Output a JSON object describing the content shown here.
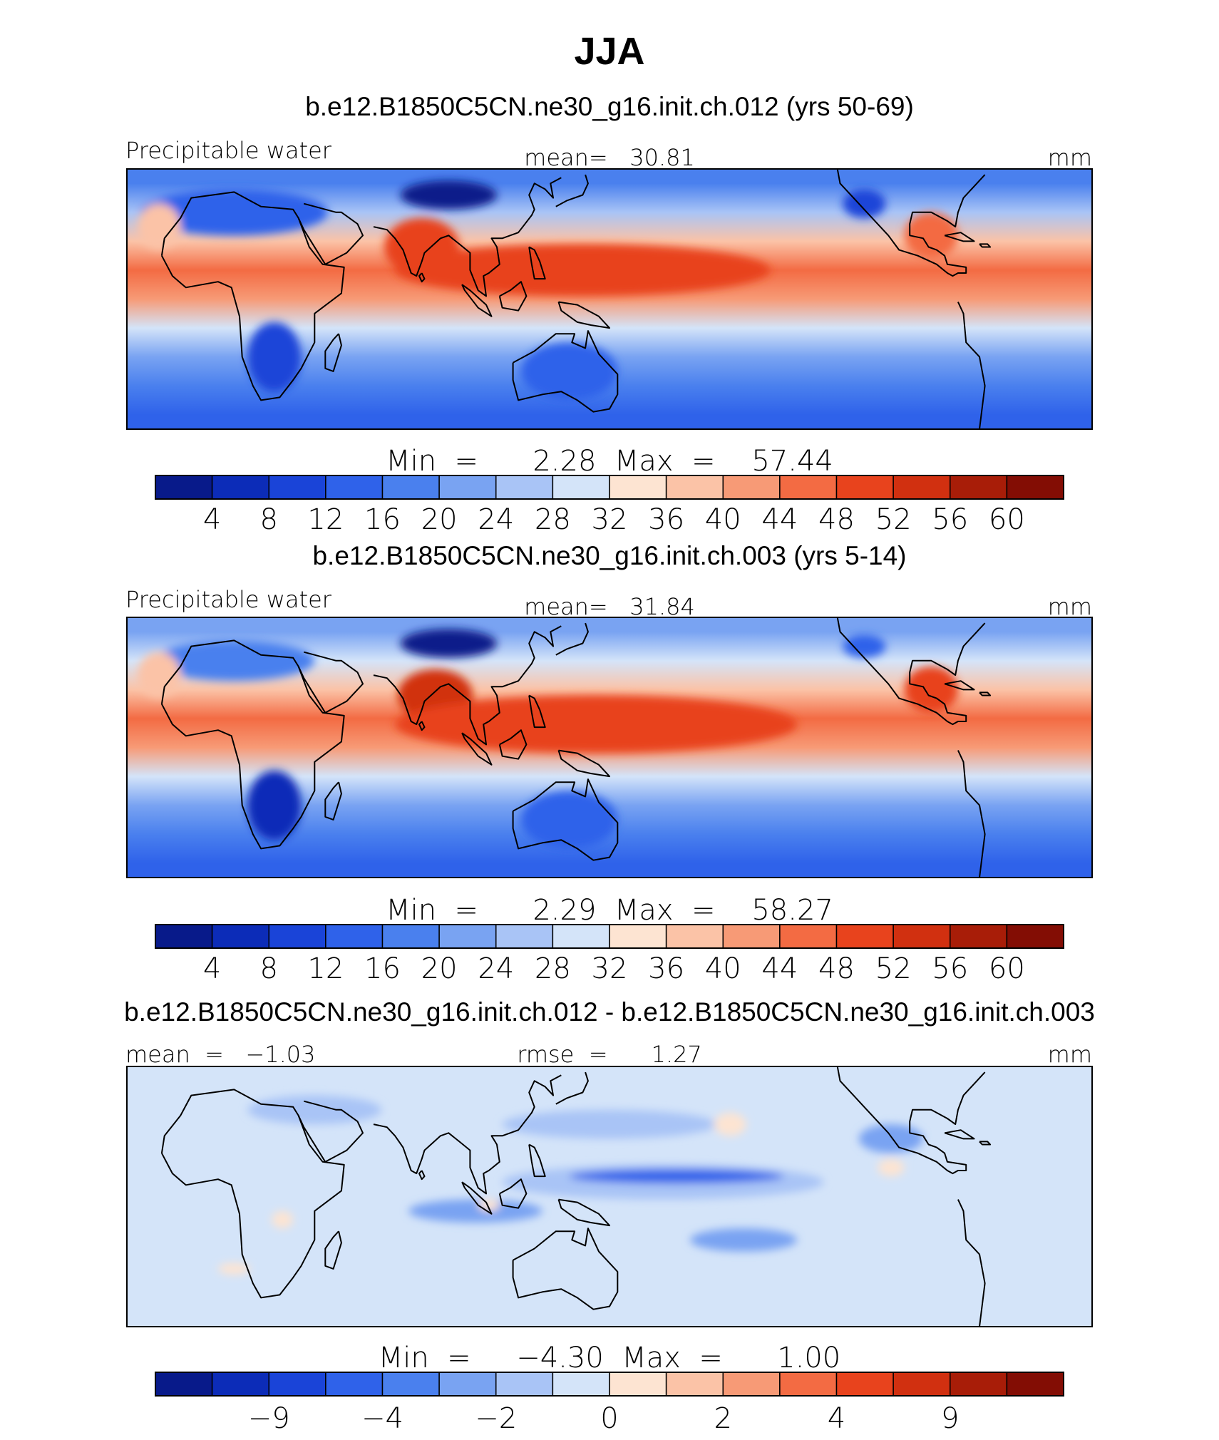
{
  "figure": {
    "title": "JJA"
  },
  "chart_data": [
    {
      "type": "heatmap",
      "subtitle": "b.e12.B1850C5CN.ne30_g16.init.ch.012 (yrs 50-69)",
      "variable_label": "Precipitable water",
      "stat_text": "mean=   30.81",
      "units": "mm",
      "minmax_text": "Min  =      2.28  Max  =    57.44",
      "colorbar": {
        "levels": [
          "4",
          "8",
          "12",
          "16",
          "20",
          "24",
          "28",
          "32",
          "36",
          "40",
          "44",
          "48",
          "52",
          "56",
          "60"
        ],
        "colors": [
          "#081a8a",
          "#0c2cb8",
          "#1a44d8",
          "#2f62ea",
          "#4a80ee",
          "#79a3f2",
          "#a9c4f6",
          "#d4e4f9",
          "#fde4d2",
          "#fbc3a7",
          "#f79a76",
          "#f36b43",
          "#e8431d",
          "#d13010",
          "#a81d08",
          "#830d04"
        ]
      },
      "bands": [
        {
          "lat": 40,
          "color": "#4a80ee"
        },
        {
          "lat": 30,
          "color": "#a9c4f6"
        },
        {
          "lat": 20,
          "color": "#fbc3a7"
        },
        {
          "lat": 10,
          "color": "#f36b43"
        },
        {
          "lat": 0,
          "color": "#f79a76"
        },
        {
          "lat": -10,
          "color": "#d4e4f9"
        },
        {
          "lat": -20,
          "color": "#79a3f2"
        },
        {
          "lat": -30,
          "color": "#4a80ee"
        },
        {
          "lat": -40,
          "color": "#2f62ea"
        }
      ],
      "blobs": [
        {
          "lon": 10,
          "lat": 30,
          "rx": 35,
          "ry": 8,
          "color": "#2f62ea"
        },
        {
          "lon": 90,
          "lat": 36,
          "rx": 18,
          "ry": 5,
          "color": "#081a8a"
        },
        {
          "lon": 80,
          "lat": 18,
          "rx": 14,
          "ry": 10,
          "color": "#e8431d"
        },
        {
          "lon": 140,
          "lat": 10,
          "rx": 70,
          "ry": 9,
          "color": "#e8431d"
        },
        {
          "lon": 25,
          "lat": -20,
          "rx": 10,
          "ry": 12,
          "color": "#1a44d8"
        },
        {
          "lon": 135,
          "lat": -25,
          "rx": 18,
          "ry": 10,
          "color": "#2f62ea"
        },
        {
          "lon": 245,
          "lat": 33,
          "rx": 8,
          "ry": 5,
          "color": "#1a44d8"
        },
        {
          "lon": 270,
          "lat": 22,
          "rx": 10,
          "ry": 8,
          "color": "#f36b43"
        },
        {
          "lon": -18,
          "lat": 25,
          "rx": 8,
          "ry": 8,
          "color": "#fbc3a7"
        }
      ]
    },
    {
      "type": "heatmap",
      "subtitle": "b.e12.B1850C5CN.ne30_g16.init.ch.003 (yrs 5-14)",
      "variable_label": "Precipitable water",
      "stat_text": "mean=   31.84",
      "units": "mm",
      "minmax_text": "Min  =      2.29  Max  =    58.27",
      "colorbar": {
        "levels": [
          "4",
          "8",
          "12",
          "16",
          "20",
          "24",
          "28",
          "32",
          "36",
          "40",
          "44",
          "48",
          "52",
          "56",
          "60"
        ],
        "colors": [
          "#081a8a",
          "#0c2cb8",
          "#1a44d8",
          "#2f62ea",
          "#4a80ee",
          "#79a3f2",
          "#a9c4f6",
          "#d4e4f9",
          "#fde4d2",
          "#fbc3a7",
          "#f79a76",
          "#f36b43",
          "#e8431d",
          "#d13010",
          "#a81d08",
          "#830d04"
        ]
      },
      "bands": [
        {
          "lat": 40,
          "color": "#79a3f2"
        },
        {
          "lat": 30,
          "color": "#d4e4f9"
        },
        {
          "lat": 20,
          "color": "#fbc3a7"
        },
        {
          "lat": 10,
          "color": "#f36b43"
        },
        {
          "lat": 0,
          "color": "#f79a76"
        },
        {
          "lat": -10,
          "color": "#d4e4f9"
        },
        {
          "lat": -20,
          "color": "#79a3f2"
        },
        {
          "lat": -30,
          "color": "#4a80ee"
        },
        {
          "lat": -40,
          "color": "#2f62ea"
        }
      ],
      "blobs": [
        {
          "lon": 10,
          "lat": 30,
          "rx": 30,
          "ry": 7,
          "color": "#4a80ee"
        },
        {
          "lon": 90,
          "lat": 36,
          "rx": 18,
          "ry": 5,
          "color": "#081a8a"
        },
        {
          "lon": 85,
          "lat": 18,
          "rx": 14,
          "ry": 9,
          "color": "#d13010"
        },
        {
          "lon": 145,
          "lat": 8,
          "rx": 75,
          "ry": 10,
          "color": "#e8431d"
        },
        {
          "lon": 25,
          "lat": -20,
          "rx": 10,
          "ry": 12,
          "color": "#0c2cb8"
        },
        {
          "lon": 135,
          "lat": -25,
          "rx": 18,
          "ry": 10,
          "color": "#2f62ea"
        },
        {
          "lon": 245,
          "lat": 35,
          "rx": 8,
          "ry": 4,
          "color": "#2f62ea"
        },
        {
          "lon": 270,
          "lat": 20,
          "rx": 10,
          "ry": 8,
          "color": "#e8431d"
        },
        {
          "lon": -18,
          "lat": 25,
          "rx": 8,
          "ry": 8,
          "color": "#fbc3a7"
        }
      ]
    },
    {
      "type": "heatmap",
      "subtitle": "b.e12.B1850C5CN.ne30_g16.init.ch.012 - b.e12.B1850C5CN.ne30_g16.init.ch.003",
      "variable_label": "mean  =   −1.03",
      "stat_text": "rmse  =      1.27",
      "units": "mm",
      "minmax_text": "Min  =     −4.30  Max  =      1.00",
      "colorbar": {
        "levels": [
          "−9",
          "",
          "−4",
          "",
          "−2",
          "",
          "0",
          "",
          "2",
          "",
          "4",
          "",
          "9"
        ],
        "colors": [
          "#081a8a",
          "#0c2cb8",
          "#1a44d8",
          "#2f62ea",
          "#4a80ee",
          "#79a3f2",
          "#a9c4f6",
          "#d4e4f9",
          "#fde4d2",
          "#fbc3a7",
          "#f79a76",
          "#f36b43",
          "#e8431d",
          "#d13010",
          "#a81d08",
          "#830d04"
        ],
        "cells": 16
      },
      "bands": [
        {
          "lat": 40,
          "color": "#d4e4f9"
        },
        {
          "lat": -40,
          "color": "#d4e4f9"
        }
      ],
      "blobs": [
        {
          "lon": 40,
          "lat": 30,
          "rx": 25,
          "ry": 5,
          "color": "#a9c4f6"
        },
        {
          "lon": 150,
          "lat": 25,
          "rx": 40,
          "ry": 5,
          "color": "#a9c4f6"
        },
        {
          "lon": 170,
          "lat": 5,
          "rx": 60,
          "ry": 6,
          "color": "#a9c4f6"
        },
        {
          "lon": 175,
          "lat": 7,
          "rx": 40,
          "ry": 2.5,
          "color": "#2f62ea"
        },
        {
          "lon": 100,
          "lat": -5,
          "rx": 25,
          "ry": 4,
          "color": "#79a3f2"
        },
        {
          "lon": 200,
          "lat": -15,
          "rx": 20,
          "ry": 4,
          "color": "#79a3f2"
        },
        {
          "lon": 255,
          "lat": 20,
          "rx": 12,
          "ry": 5,
          "color": "#79a3f2"
        },
        {
          "lon": 195,
          "lat": 25,
          "rx": 6,
          "ry": 4,
          "color": "#fde4d2"
        },
        {
          "lon": 28,
          "lat": -8,
          "rx": 4,
          "ry": 3,
          "color": "#fde4d2"
        },
        {
          "lon": 105,
          "lat": -3,
          "rx": 4,
          "ry": 2,
          "color": "#fde4d2"
        },
        {
          "lon": 10,
          "lat": -25,
          "rx": 6,
          "ry": 2,
          "color": "#fde4d2"
        },
        {
          "lon": 255,
          "lat": 10,
          "rx": 5,
          "ry": 3,
          "color": "#fde4d2"
        }
      ]
    }
  ]
}
